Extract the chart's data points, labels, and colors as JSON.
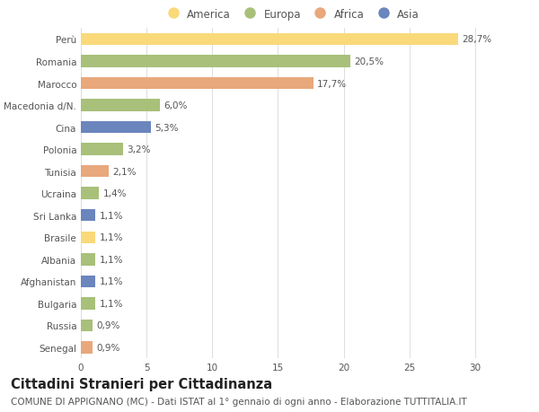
{
  "countries": [
    "Perù",
    "Romania",
    "Marocco",
    "Macedonia d/N.",
    "Cina",
    "Polonia",
    "Tunisia",
    "Ucraina",
    "Sri Lanka",
    "Brasile",
    "Albania",
    "Afghanistan",
    "Bulgaria",
    "Russia",
    "Senegal"
  ],
  "values": [
    28.7,
    20.5,
    17.7,
    6.0,
    5.3,
    3.2,
    2.1,
    1.4,
    1.1,
    1.1,
    1.1,
    1.1,
    1.1,
    0.9,
    0.9
  ],
  "labels": [
    "28,7%",
    "20,5%",
    "17,7%",
    "6,0%",
    "5,3%",
    "3,2%",
    "2,1%",
    "1,4%",
    "1,1%",
    "1,1%",
    "1,1%",
    "1,1%",
    "1,1%",
    "0,9%",
    "0,9%"
  ],
  "continents": [
    "America",
    "Europa",
    "Africa",
    "Europa",
    "Asia",
    "Europa",
    "Africa",
    "Europa",
    "Asia",
    "America",
    "Europa",
    "Asia",
    "Europa",
    "Europa",
    "Africa"
  ],
  "continent_colors": {
    "America": "#F9D97A",
    "Europa": "#A8C07A",
    "Africa": "#E8A87C",
    "Asia": "#6B85BD"
  },
  "legend_order": [
    "America",
    "Europa",
    "Africa",
    "Asia"
  ],
  "title": "Cittadini Stranieri per Cittadinanza",
  "subtitle": "COMUNE DI APPIGNANO (MC) - Dati ISTAT al 1° gennaio di ogni anno - Elaborazione TUTTITALIA.IT",
  "xlim": [
    0,
    32
  ],
  "xticks": [
    0,
    5,
    10,
    15,
    20,
    25,
    30
  ],
  "bg_color": "#ffffff",
  "grid_color": "#dddddd",
  "bar_height": 0.55,
  "title_fontsize": 10.5,
  "subtitle_fontsize": 7.5,
  "label_fontsize": 7.5,
  "tick_fontsize": 7.5,
  "legend_fontsize": 8.5
}
